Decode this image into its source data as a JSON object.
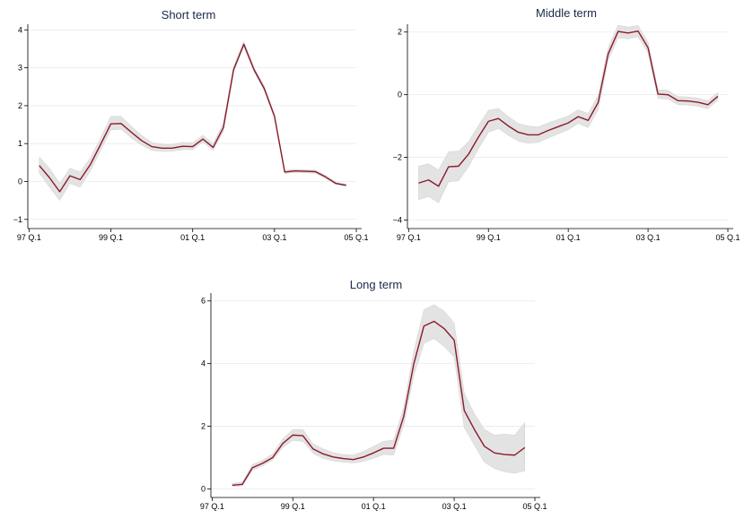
{
  "colors": {
    "line": "#8b1a2b",
    "band": "#e3e3e3",
    "grid": "#e6eaee"
  },
  "chart_data": [
    {
      "type": "line",
      "title": "Short term",
      "xlabel": "",
      "ylabel": "",
      "grid": true,
      "x_tick_labels": [
        "97 Q.1",
        "99 Q.1",
        "01 Q.1",
        "03 Q.1",
        "05 Q.1"
      ],
      "x_ticks": [
        1997.0,
        1999.0,
        2001.0,
        2003.0,
        2005.0
      ],
      "y_ticks": [
        -1,
        0,
        1,
        2,
        3,
        4
      ],
      "xlim": [
        1996.97,
        2005.0
      ],
      "ylim": [
        -1.1,
        4.15
      ],
      "series": [
        {
          "x": [
            1997.25,
            1997.5,
            1997.75,
            1998.0,
            1998.25,
            1998.5,
            1998.75,
            1999.0,
            1999.25,
            1999.5,
            1999.75,
            2000.0,
            2000.25,
            2000.5,
            2000.75,
            2001.0,
            2001.25,
            2001.5,
            2001.75,
            2002.0,
            2002.25,
            2002.5,
            2002.75,
            2003.0,
            2003.25,
            2003.5,
            2003.75,
            2004.0,
            2004.25,
            2004.5,
            2004.75
          ],
          "y": [
            0.42,
            0.1,
            -0.27,
            0.15,
            0.05,
            0.45,
            0.98,
            1.52,
            1.53,
            1.3,
            1.08,
            0.92,
            0.88,
            0.88,
            0.93,
            0.92,
            1.12,
            0.9,
            1.42,
            2.95,
            3.62,
            2.95,
            2.45,
            1.72,
            0.25,
            0.28,
            0.27,
            0.26,
            0.12,
            -0.05,
            -0.1
          ],
          "lower": [
            0.22,
            -0.15,
            -0.5,
            -0.05,
            -0.15,
            0.28,
            0.82,
            1.36,
            1.38,
            1.15,
            0.96,
            0.82,
            0.8,
            0.8,
            0.84,
            0.84,
            1.04,
            0.82,
            1.32,
            2.88,
            3.56,
            2.9,
            2.4,
            1.68,
            0.21,
            0.24,
            0.23,
            0.22,
            0.08,
            -0.08,
            -0.12
          ],
          "upper": [
            0.65,
            0.35,
            -0.05,
            0.35,
            0.25,
            0.62,
            1.15,
            1.72,
            1.72,
            1.46,
            1.22,
            1.03,
            0.98,
            0.97,
            1.03,
            1.02,
            1.22,
            1.0,
            1.54,
            3.03,
            3.7,
            3.01,
            2.52,
            1.78,
            0.3,
            0.32,
            0.31,
            0.3,
            0.16,
            -0.02,
            -0.07
          ]
        }
      ]
    },
    {
      "type": "line",
      "title": "Middle term",
      "xlabel": "",
      "ylabel": "",
      "grid": true,
      "x_tick_labels": [
        "97 Q.1",
        "99 Q.1",
        "01 Q.1",
        "03 Q.1",
        "05 Q.1"
      ],
      "x_ticks": [
        1997.0,
        1999.0,
        2001.0,
        2003.0,
        2005.0
      ],
      "y_ticks": [
        -4,
        -2,
        0,
        2
      ],
      "xlim": [
        1996.97,
        2005.0
      ],
      "ylim": [
        -4.1,
        2.25
      ],
      "series": [
        {
          "x": [
            1997.25,
            1997.5,
            1997.75,
            1998.0,
            1998.25,
            1998.5,
            1998.75,
            1999.0,
            1999.25,
            1999.5,
            1999.75,
            2000.0,
            2000.25,
            2000.5,
            2000.75,
            2001.0,
            2001.25,
            2001.5,
            2001.75,
            2002.0,
            2002.25,
            2002.5,
            2002.75,
            2003.0,
            2003.25,
            2003.5,
            2003.75,
            2004.0,
            2004.25,
            2004.5,
            2004.75
          ],
          "y": [
            -2.82,
            -2.72,
            -2.92,
            -2.3,
            -2.28,
            -1.9,
            -1.35,
            -0.85,
            -0.76,
            -1.0,
            -1.2,
            -1.28,
            -1.28,
            -1.14,
            -1.02,
            -0.9,
            -0.7,
            -0.82,
            -0.25,
            1.3,
            2.02,
            1.97,
            2.03,
            1.5,
            0.02,
            0.0,
            -0.19,
            -0.2,
            -0.24,
            -0.32,
            -0.05
          ],
          "lower": [
            -3.35,
            -3.25,
            -3.45,
            -2.78,
            -2.75,
            -2.3,
            -1.72,
            -1.2,
            -1.08,
            -1.3,
            -1.48,
            -1.55,
            -1.52,
            -1.38,
            -1.25,
            -1.12,
            -0.92,
            -1.05,
            -0.48,
            1.1,
            1.82,
            1.78,
            1.85,
            1.32,
            -0.12,
            -0.14,
            -0.32,
            -0.33,
            -0.37,
            -0.45,
            -0.17
          ],
          "upper": [
            -2.28,
            -2.2,
            -2.4,
            -1.82,
            -1.8,
            -1.5,
            -0.98,
            -0.5,
            -0.44,
            -0.7,
            -0.92,
            -1.0,
            -1.03,
            -0.9,
            -0.79,
            -0.68,
            -0.48,
            -0.6,
            -0.02,
            1.5,
            2.22,
            2.16,
            2.21,
            1.68,
            0.16,
            0.14,
            -0.06,
            -0.07,
            -0.11,
            -0.19,
            0.07
          ]
        }
      ]
    },
    {
      "type": "line",
      "title": "Long term",
      "xlabel": "",
      "ylabel": "",
      "grid": true,
      "x_tick_labels": [
        "97 Q.1",
        "99 Q.1",
        "01 Q.1",
        "03 Q.1",
        "05 Q.1"
      ],
      "x_ticks": [
        1997.0,
        1999.0,
        2001.0,
        2003.0,
        2005.0
      ],
      "y_ticks": [
        0,
        2,
        4,
        6
      ],
      "xlim": [
        1996.97,
        2005.0
      ],
      "ylim": [
        -0.1,
        6.25
      ],
      "series": [
        {
          "x": [
            1997.5,
            1997.75,
            1998.0,
            1998.25,
            1998.5,
            1998.75,
            1999.0,
            1999.25,
            1999.5,
            1999.75,
            2000.0,
            2000.25,
            2000.5,
            2000.75,
            2001.0,
            2001.25,
            2001.5,
            2001.75,
            2002.0,
            2002.25,
            2002.5,
            2002.75,
            2003.0,
            2003.25,
            2003.5,
            2003.75,
            2004.0,
            2004.25,
            2004.5,
            2004.75
          ],
          "y": [
            0.12,
            0.15,
            0.68,
            0.82,
            1.0,
            1.45,
            1.72,
            1.7,
            1.28,
            1.12,
            1.02,
            0.97,
            0.94,
            1.02,
            1.15,
            1.3,
            1.3,
            2.32,
            4.0,
            5.2,
            5.35,
            5.12,
            4.75,
            2.5,
            1.9,
            1.36,
            1.15,
            1.1,
            1.08,
            1.32
          ],
          "lower": [
            0.08,
            0.1,
            0.6,
            0.74,
            0.92,
            1.32,
            1.55,
            1.52,
            1.14,
            0.98,
            0.9,
            0.86,
            0.83,
            0.88,
            0.98,
            1.1,
            1.08,
            2.05,
            3.62,
            4.65,
            4.8,
            4.55,
            4.2,
            1.95,
            1.4,
            0.85,
            0.65,
            0.55,
            0.5,
            0.58
          ],
          "upper": [
            0.18,
            0.22,
            0.78,
            0.92,
            1.12,
            1.6,
            1.9,
            1.9,
            1.44,
            1.28,
            1.16,
            1.1,
            1.08,
            1.2,
            1.36,
            1.52,
            1.56,
            2.6,
            4.4,
            5.72,
            5.88,
            5.68,
            5.3,
            3.05,
            2.4,
            1.9,
            1.72,
            1.75,
            1.72,
            2.12
          ]
        }
      ]
    }
  ]
}
